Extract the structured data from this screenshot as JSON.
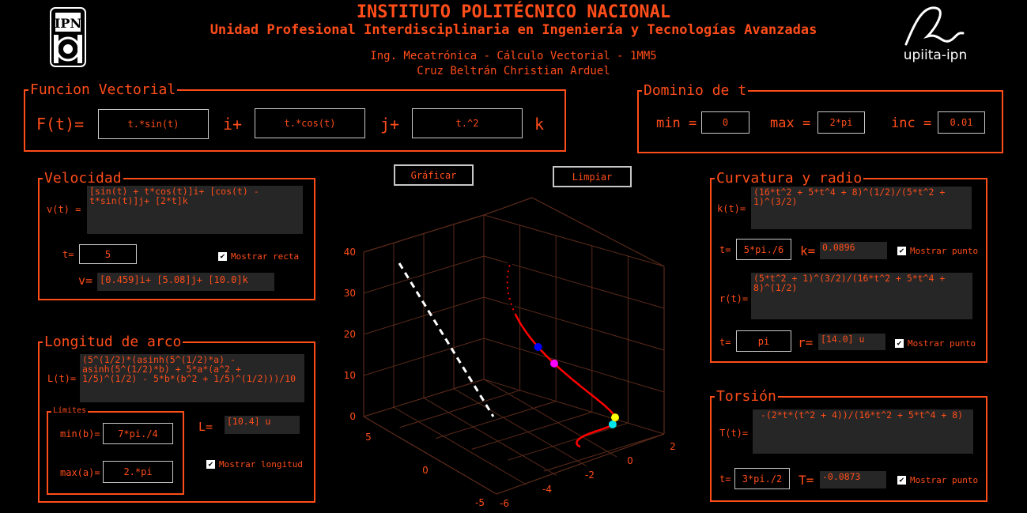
{
  "header": {
    "title": "INSTITUTO POLITÉCNICO NACIONAL",
    "subtitle": "Unidad Profesional Interdisciplinaria en Ingeniería y Tecnologías Avanzadas",
    "course": "Ing. Mecatrónica - Cálculo Vectorial - 1MM5",
    "author": "Cruz Beltrán Christian Arduel",
    "logo_left_text": "IPN",
    "logo_right_text": "upiita-ipn"
  },
  "funcion_vectorial": {
    "title": "Funcion Vectorial",
    "label": "F(t)=",
    "i_value": "t.*sin(t)",
    "i_label": "i+",
    "j_value": "t.*cos(t)",
    "j_label": "j+",
    "k_value": "t.^2",
    "k_label": "k"
  },
  "dominio": {
    "title": "Dominio de t",
    "min_label": "min =",
    "min_value": "0",
    "max_label": "max =",
    "max_value": "2*pi",
    "inc_label": "inc =",
    "inc_value": "0.01"
  },
  "buttons": {
    "graficar": "Gráficar",
    "limpiar": "Limpiar"
  },
  "velocidad": {
    "title": "Velocidad",
    "v_label": "v(t) =",
    "v_expr": "[sin(t) + t*cos(t)]i+ [cos(t) -\nt*sin(t)]j+ [2*t]k",
    "t_label": "t=",
    "t_value": "5",
    "show_label": "Mostrar recta",
    "vel_label": "v=",
    "vel_value": "[0.459]i+ [5.08]j+ [10.0]k"
  },
  "longitud": {
    "title": "Longitud de arco",
    "L_label": "L(t)=",
    "L_expr": "(5^(1/2)*(asinh(5^(1/2)*a) -\nasinh(5^(1/2)*b) + 5*a*(a^2 +\n1/5)^(1/2) - 5*b*(b^2 + 1/5)^(1/2)))/10",
    "limits_title": "Límites",
    "min_label": "min(b)=",
    "min_value": "7*pi./4",
    "max_label": "max(a)=",
    "max_value": "2.*pi",
    "Lres_label": "L=",
    "Lres_value": "[10.4] u",
    "show_label": "Mostrar longitud"
  },
  "curvatura": {
    "title": "Curvatura y radio",
    "k_label": "k(t)=",
    "k_expr": "(16*t^2 + 5*t^4 + 8)^(1/2)/(5*t^2 +\n1)^(3/2)",
    "t1_label": "t=",
    "t1_value": "5*pi./6",
    "kval_label": "k=",
    "kval_value": "0.0896",
    "show1_label": "Mostrar punto",
    "r_label": "r(t)=",
    "r_expr": "(5*t^2 + 1)^(3/2)/(16*t^2 + 5*t^4 +\n8)^(1/2)",
    "t2_label": "t=",
    "t2_value": "pi",
    "rval_label": "r=",
    "rval_value": "[14.0] u",
    "show2_label": "Mostrar punto"
  },
  "torsion": {
    "title": "Torsión",
    "T_label": "T(t)=",
    "T_expr": " -(2*t*(t^2 + 4))/(16*t^2 + 5*t^4 + 8)",
    "t_label": "t=",
    "t_value": "3*pi./2",
    "Tval_label": "T=",
    "Tval_value": "-0.0873",
    "show_label": "Mostrar punto"
  },
  "plot": {
    "z_ticks": [
      "0",
      "10",
      "20",
      "30",
      "40"
    ],
    "x_ticks": [
      "5",
      "0",
      "-5"
    ],
    "y_ticks": [
      "-6",
      "-4",
      "-2",
      "0",
      "2"
    ],
    "colors": {
      "curve": "#ff0000",
      "grid": "#5a2a1a",
      "tangent_line": "#ffffff",
      "point_velocity": "#0000ff",
      "point_curvature": "#00e5ee",
      "point_radius": "#ffff00",
      "point_torsion": "#ff00ff"
    }
  }
}
